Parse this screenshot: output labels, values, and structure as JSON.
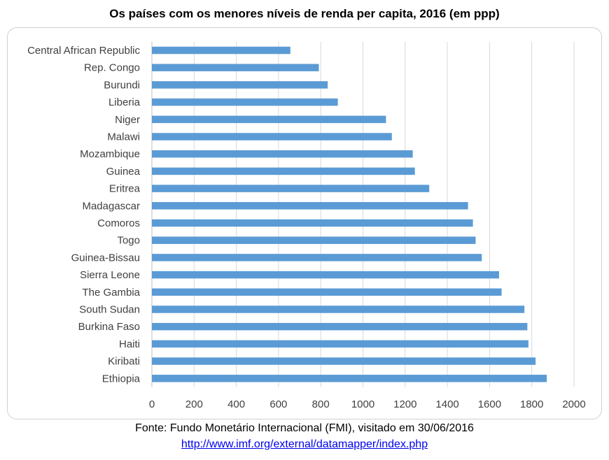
{
  "title": "Os países com os menores níveis de renda per capita, 2016 (em ppp)",
  "source_text": "Fonte: Fundo Monetário Internacional (FMI), visitado em 30/06/2016",
  "source_link": "http://www.imf.org/external/datamapper/index.php",
  "colors": {
    "bar": "#5b9bd5",
    "grid": "#d9d9d9",
    "text": "#404040"
  },
  "chart_data": {
    "type": "bar",
    "orientation": "horizontal",
    "title": "Os países com os menores níveis de renda per capita, 2016 (em ppp)",
    "xlabel": "",
    "ylabel": "",
    "xlim": [
      0,
      2000
    ],
    "x_ticks": [
      0,
      200,
      400,
      600,
      800,
      1000,
      1200,
      1400,
      1600,
      1800,
      2000
    ],
    "grid": true,
    "legend": "none",
    "categories": [
      "Central African Republic",
      "Rep. Congo",
      "Burundi",
      "Liberia",
      "Niger",
      "Malawi",
      "Mozambique",
      "Guinea",
      "Eritrea",
      "Madagascar",
      "Comoros",
      "Togo",
      "Guinea-Bissau",
      "Sierra Leone",
      "The Gambia",
      "South Sudan",
      "Burkina Faso",
      "Haiti",
      "Kiribati",
      "Ethiopia"
    ],
    "values": [
      656,
      791,
      833,
      881,
      1109,
      1137,
      1236,
      1246,
      1314,
      1498,
      1521,
      1534,
      1563,
      1645,
      1657,
      1765,
      1779,
      1784,
      1818,
      1871
    ]
  }
}
